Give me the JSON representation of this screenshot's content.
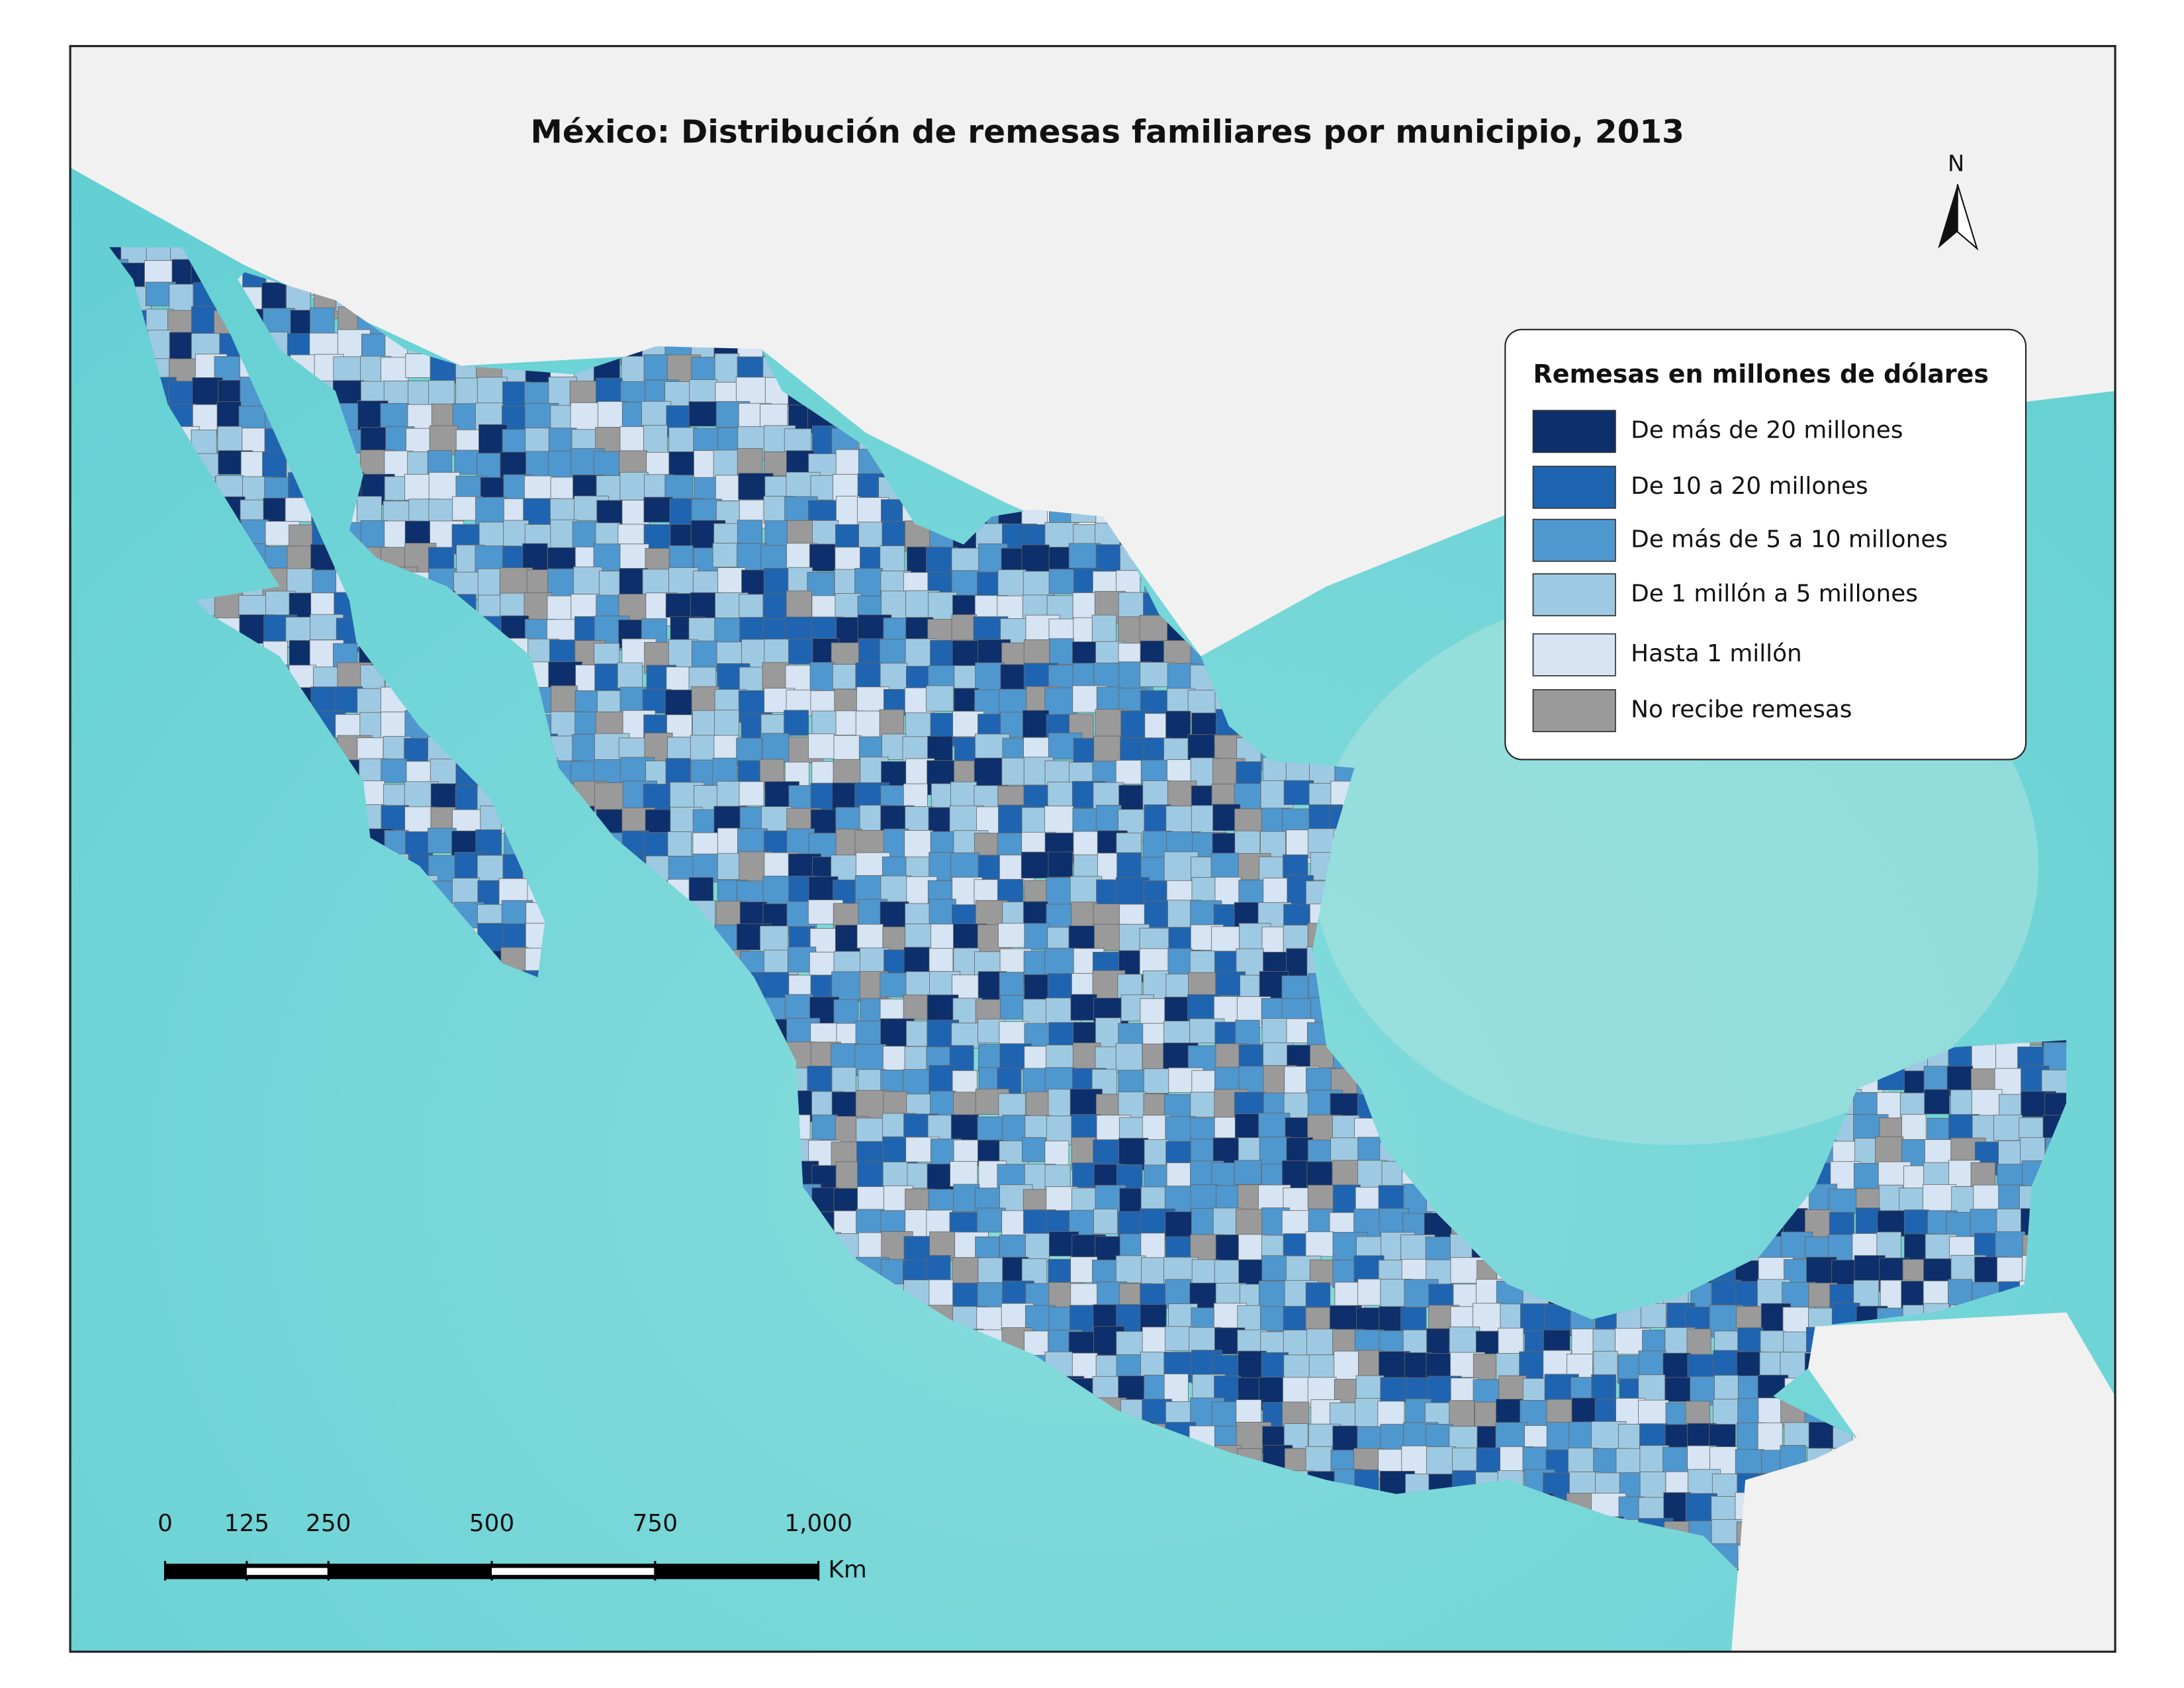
{
  "title": "México: Distribución de remesas familiares por municipio, 2013",
  "north_arrow": "N",
  "legend": {
    "title": "Remesas en millones de dólares",
    "items": [
      {
        "label": "De más de 20 millones",
        "color": "#0d2f6b"
      },
      {
        "label": "De 10 a 20 millones",
        "color": "#1f64b0"
      },
      {
        "label": "De más de 5 a 10 millones",
        "color": "#4f97cf"
      },
      {
        "label": "De 1 millón a 5 millones",
        "color": "#9ec9e2"
      },
      {
        "label": "Hasta 1 millón",
        "color": "#d6e4f3"
      },
      {
        "label": "No recibe remesas",
        "color": "#9a9a9a"
      }
    ]
  },
  "scale_bar": {
    "ticks": [
      0,
      125,
      250,
      500,
      750,
      {
        "value": 1000,
        "label": "1,000"
      }
    ],
    "unit": "Km"
  }
}
